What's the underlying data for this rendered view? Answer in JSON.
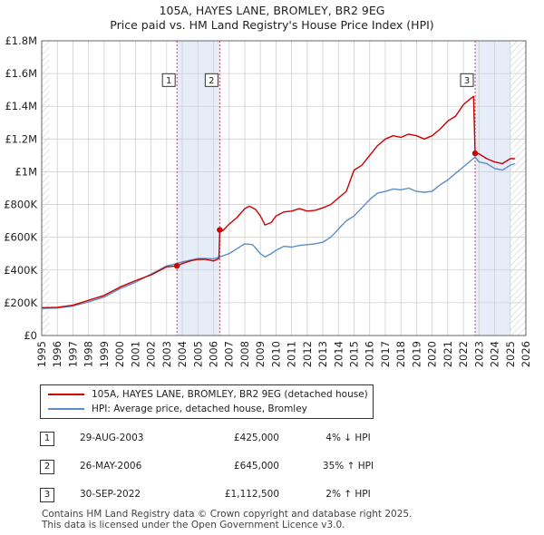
{
  "header": {
    "title_line1": "105A, HAYES LANE, BROMLEY, BR2 9EG",
    "title_line2": "Price paid vs. HM Land Registry's House Price Index (HPI)"
  },
  "chart_data": {
    "type": "line",
    "title": "105A, HAYES LANE, BROMLEY, BR2 9EG — Price paid vs. HM Land Registry's House Price Index (HPI)",
    "xlim": [
      1995,
      2026
    ],
    "ylim": [
      0,
      1800000
    ],
    "x_ticks": [
      1995,
      1996,
      1997,
      1998,
      1999,
      2000,
      2001,
      2002,
      2003,
      2004,
      2005,
      2006,
      2007,
      2008,
      2009,
      2010,
      2011,
      2012,
      2013,
      2014,
      2015,
      2016,
      2017,
      2018,
      2019,
      2020,
      2021,
      2022,
      2023,
      2024,
      2025,
      2026
    ],
    "y_ticks": [
      0,
      200000,
      400000,
      600000,
      800000,
      1000000,
      1200000,
      1400000,
      1600000,
      1800000
    ],
    "y_tick_labels": [
      "£0",
      "£200K",
      "£400K",
      "£600K",
      "£800K",
      "£1M",
      "£1.2M",
      "£1.4M",
      "£1.6M",
      "£1.8M"
    ],
    "hatched_regions": [
      [
        1995.0,
        1995.5
      ],
      [
        2025.0,
        2026.0
      ]
    ],
    "shaded_spans": [
      [
        2003.66,
        2006.4
      ],
      [
        2022.75,
        2025.0
      ]
    ],
    "series": [
      {
        "name": "105A, HAYES LANE, BROMLEY, BR2 9EG (detached house)",
        "color": "#cc0000",
        "points": [
          [
            1995.0,
            170000
          ],
          [
            1996.0,
            172000
          ],
          [
            1997.0,
            185000
          ],
          [
            1998.0,
            215000
          ],
          [
            1999.0,
            245000
          ],
          [
            2000.0,
            295000
          ],
          [
            2001.0,
            335000
          ],
          [
            2002.0,
            370000
          ],
          [
            2003.0,
            420000
          ],
          [
            2003.66,
            425000
          ],
          [
            2004.0,
            440000
          ],
          [
            2004.5,
            455000
          ],
          [
            2005.0,
            465000
          ],
          [
            2005.5,
            465000
          ],
          [
            2006.0,
            455000
          ],
          [
            2006.35,
            470000
          ],
          [
            2006.4,
            645000
          ],
          [
            2006.6,
            640000
          ],
          [
            2007.0,
            680000
          ],
          [
            2007.5,
            720000
          ],
          [
            2008.0,
            775000
          ],
          [
            2008.3,
            790000
          ],
          [
            2008.7,
            770000
          ],
          [
            2009.0,
            730000
          ],
          [
            2009.3,
            675000
          ],
          [
            2009.7,
            690000
          ],
          [
            2010.0,
            730000
          ],
          [
            2010.5,
            755000
          ],
          [
            2011.0,
            760000
          ],
          [
            2011.5,
            775000
          ],
          [
            2012.0,
            760000
          ],
          [
            2012.5,
            765000
          ],
          [
            2013.0,
            780000
          ],
          [
            2013.5,
            800000
          ],
          [
            2014.0,
            840000
          ],
          [
            2014.5,
            880000
          ],
          [
            2015.0,
            1010000
          ],
          [
            2015.5,
            1040000
          ],
          [
            2016.0,
            1100000
          ],
          [
            2016.5,
            1160000
          ],
          [
            2017.0,
            1200000
          ],
          [
            2017.5,
            1220000
          ],
          [
            2018.0,
            1210000
          ],
          [
            2018.5,
            1230000
          ],
          [
            2019.0,
            1220000
          ],
          [
            2019.5,
            1200000
          ],
          [
            2020.0,
            1220000
          ],
          [
            2020.5,
            1260000
          ],
          [
            2021.0,
            1310000
          ],
          [
            2021.5,
            1340000
          ],
          [
            2022.0,
            1410000
          ],
          [
            2022.5,
            1450000
          ],
          [
            2022.65,
            1460000
          ],
          [
            2022.75,
            1112500
          ],
          [
            2023.0,
            1110000
          ],
          [
            2023.5,
            1080000
          ],
          [
            2024.0,
            1060000
          ],
          [
            2024.5,
            1050000
          ],
          [
            2025.0,
            1080000
          ],
          [
            2025.3,
            1080000
          ]
        ]
      },
      {
        "name": "HPI: Average price, detached house, Bromley",
        "color": "#5b8dc9",
        "points": [
          [
            1995.0,
            165000
          ],
          [
            1996.0,
            168000
          ],
          [
            1997.0,
            180000
          ],
          [
            1998.0,
            205000
          ],
          [
            1999.0,
            235000
          ],
          [
            2000.0,
            285000
          ],
          [
            2001.0,
            325000
          ],
          [
            2002.0,
            375000
          ],
          [
            2003.0,
            425000
          ],
          [
            2003.66,
            440000
          ],
          [
            2004.0,
            450000
          ],
          [
            2004.5,
            460000
          ],
          [
            2005.0,
            470000
          ],
          [
            2005.5,
            470000
          ],
          [
            2006.0,
            468000
          ],
          [
            2006.4,
            480000
          ],
          [
            2007.0,
            500000
          ],
          [
            2007.5,
            530000
          ],
          [
            2008.0,
            560000
          ],
          [
            2008.5,
            555000
          ],
          [
            2009.0,
            500000
          ],
          [
            2009.3,
            480000
          ],
          [
            2009.7,
            500000
          ],
          [
            2010.0,
            520000
          ],
          [
            2010.5,
            545000
          ],
          [
            2011.0,
            540000
          ],
          [
            2011.5,
            550000
          ],
          [
            2012.0,
            555000
          ],
          [
            2012.5,
            560000
          ],
          [
            2013.0,
            570000
          ],
          [
            2013.5,
            600000
          ],
          [
            2014.0,
            650000
          ],
          [
            2014.5,
            700000
          ],
          [
            2015.0,
            730000
          ],
          [
            2015.5,
            780000
          ],
          [
            2016.0,
            830000
          ],
          [
            2016.5,
            870000
          ],
          [
            2017.0,
            880000
          ],
          [
            2017.5,
            895000
          ],
          [
            2018.0,
            890000
          ],
          [
            2018.5,
            900000
          ],
          [
            2019.0,
            880000
          ],
          [
            2019.5,
            875000
          ],
          [
            2020.0,
            880000
          ],
          [
            2020.5,
            920000
          ],
          [
            2021.0,
            950000
          ],
          [
            2021.5,
            990000
          ],
          [
            2022.0,
            1030000
          ],
          [
            2022.75,
            1090000
          ],
          [
            2023.0,
            1060000
          ],
          [
            2023.5,
            1050000
          ],
          [
            2024.0,
            1020000
          ],
          [
            2024.5,
            1010000
          ],
          [
            2025.0,
            1040000
          ],
          [
            2025.3,
            1050000
          ]
        ]
      }
    ],
    "sales": [
      {
        "num": "1",
        "date": "29-AUG-2003",
        "price": "£425,000",
        "hpi": "4% ↓ HPI",
        "x": 2003.66,
        "y": 425000,
        "marker_y": 1560000
      },
      {
        "num": "2",
        "date": "26-MAY-2006",
        "price": "£645,000",
        "hpi": "35% ↑ HPI",
        "x": 2006.4,
        "y": 645000,
        "marker_y": 1560000
      },
      {
        "num": "3",
        "date": "30-SEP-2022",
        "price": "£1,112,500",
        "hpi": "2% ↑ HPI",
        "x": 2022.75,
        "y": 1112500,
        "marker_y": 1560000
      }
    ]
  },
  "legend": {
    "items": [
      {
        "label": "105A, HAYES LANE, BROMLEY, BR2 9EG (detached house)",
        "color": "#cc0000"
      },
      {
        "label": "HPI: Average price, detached house, Bromley",
        "color": "#5b8dc9"
      }
    ]
  },
  "footer": {
    "line1": "Contains HM Land Registry data © Crown copyright and database right 2025.",
    "line2": "This data is licensed under the Open Government Licence v3.0."
  }
}
